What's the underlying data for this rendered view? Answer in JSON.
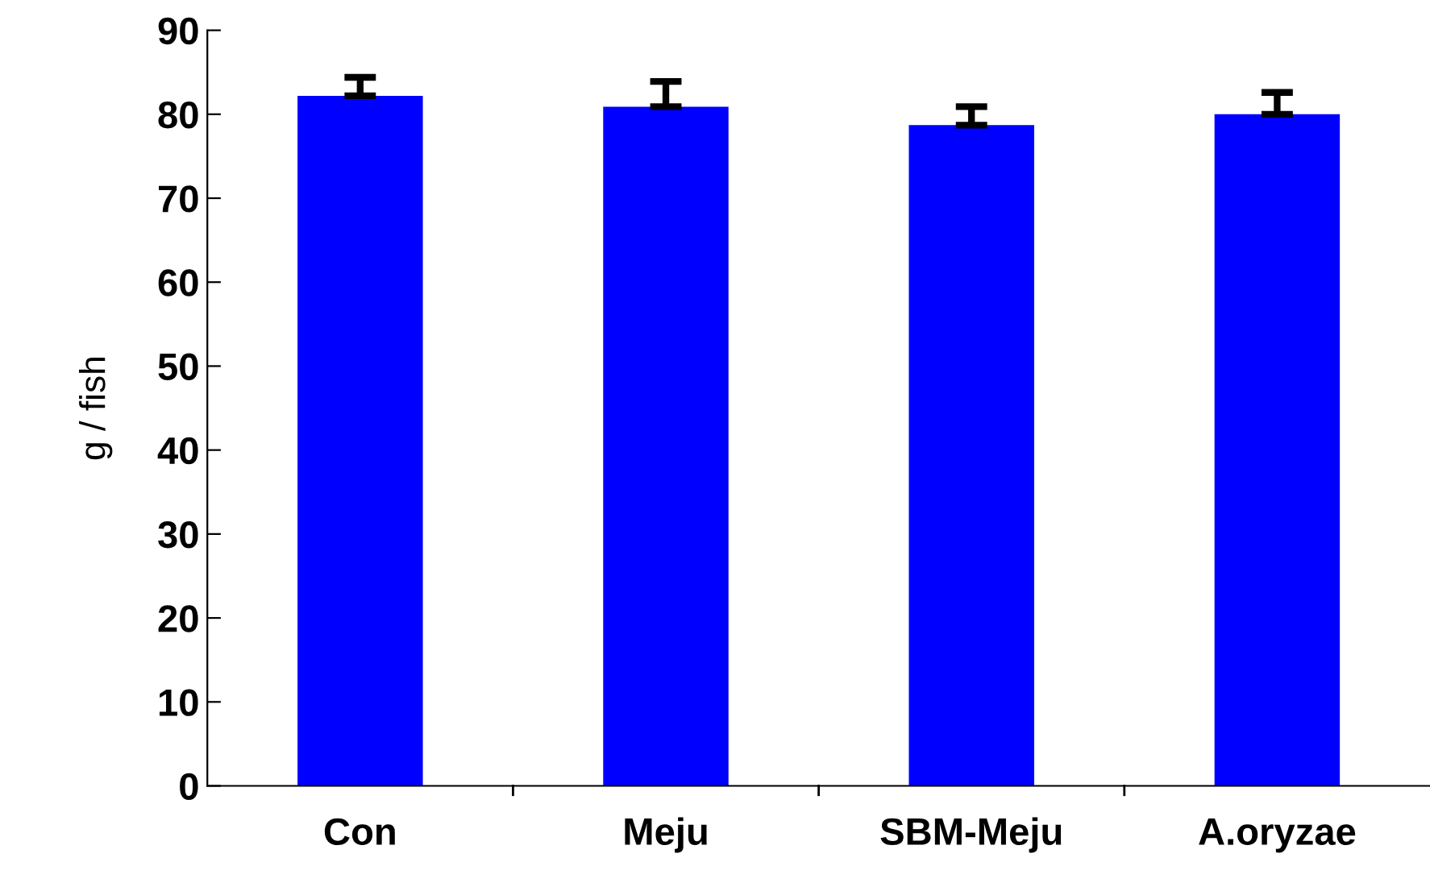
{
  "chart_data": {
    "type": "bar",
    "ylabel": "g / fish",
    "categories": [
      "Con",
      "Meju",
      "SBM-Meju",
      "A.oryzae"
    ],
    "values": [
      82.2,
      80.9,
      78.7,
      80.0
    ],
    "errors": [
      [
        82.2,
        84.4
      ],
      [
        80.9,
        83.9
      ],
      [
        78.7,
        80.9
      ],
      [
        80.0,
        82.6
      ]
    ],
    "color": "#0000ff",
    "ylim": [
      0,
      90
    ],
    "yticks": [
      0,
      10,
      20,
      30,
      40,
      50,
      60,
      70,
      80,
      90
    ],
    "grid": false,
    "legend": false
  }
}
